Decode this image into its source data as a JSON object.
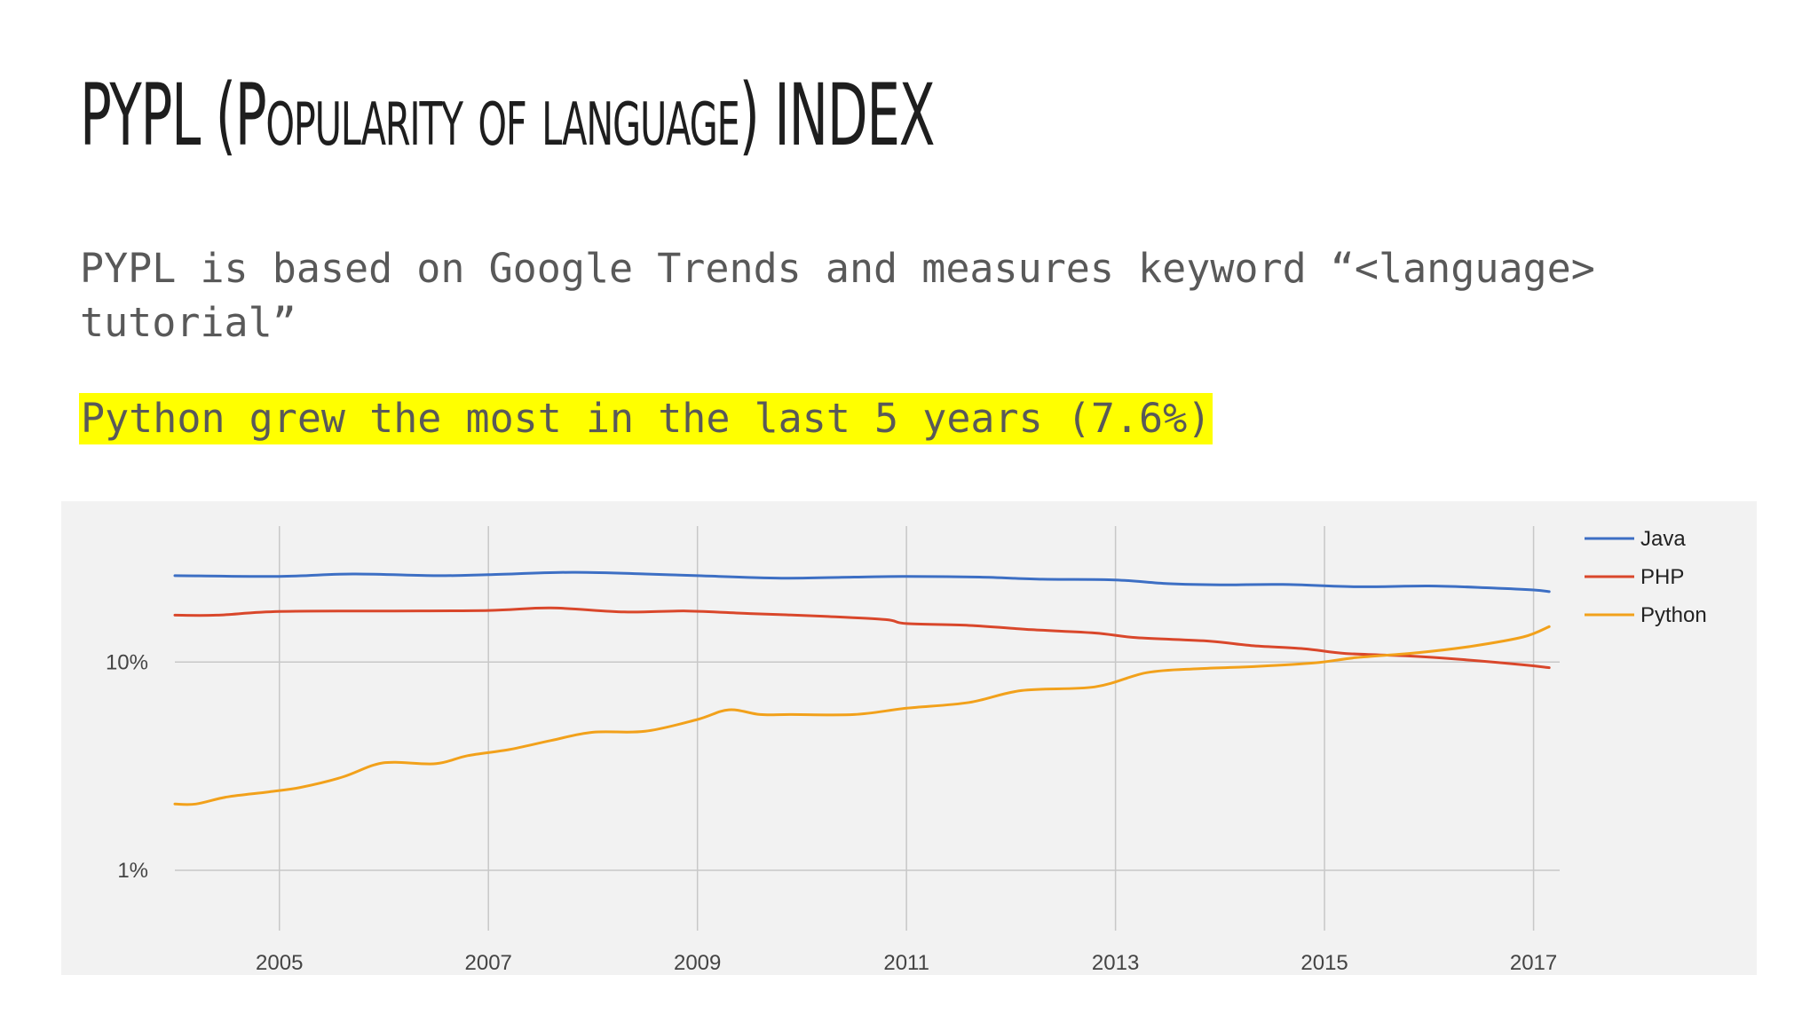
{
  "slide": {
    "title": "PYPL (Popularity of language) INDEX",
    "subtitle": "PYPL is based on Google Trends and measures keyword “<language> tutorial”",
    "highlight": "Python grew the most in the last 5 years (7.6%)",
    "highlight_color": "#ffff00"
  },
  "chart_data": {
    "type": "line",
    "title": "",
    "xlabel": "",
    "ylabel": "",
    "y_scale": "log",
    "ylim": [
      0.6,
      45
    ],
    "xlim": [
      2004.0,
      2017.25
    ],
    "x_ticks": [
      2005,
      2007,
      2009,
      2011,
      2013,
      2015,
      2017
    ],
    "y_ticks": [
      {
        "value": 10,
        "label": "10%"
      },
      {
        "value": 1,
        "label": "1%"
      }
    ],
    "grid": true,
    "legend_position": "top-right",
    "series": [
      {
        "name": "Java",
        "color": "#3d6fc4",
        "points": [
          [
            2004.0,
            26.0
          ],
          [
            2005.0,
            25.8
          ],
          [
            2005.7,
            26.5
          ],
          [
            2006.5,
            26.0
          ],
          [
            2007.0,
            26.3
          ],
          [
            2007.8,
            27.0
          ],
          [
            2008.5,
            26.5
          ],
          [
            2009.0,
            26.0
          ],
          [
            2009.8,
            25.3
          ],
          [
            2010.5,
            25.6
          ],
          [
            2011.0,
            25.8
          ],
          [
            2011.7,
            25.6
          ],
          [
            2012.3,
            25.0
          ],
          [
            2013.0,
            24.8
          ],
          [
            2013.5,
            23.8
          ],
          [
            2014.0,
            23.5
          ],
          [
            2014.6,
            23.6
          ],
          [
            2015.3,
            23.0
          ],
          [
            2016.0,
            23.2
          ],
          [
            2016.6,
            22.7
          ],
          [
            2017.0,
            22.2
          ],
          [
            2017.15,
            21.8
          ]
        ]
      },
      {
        "name": "PHP",
        "color": "#d9472b",
        "points": [
          [
            2004.0,
            16.8
          ],
          [
            2004.4,
            16.8
          ],
          [
            2005.0,
            17.5
          ],
          [
            2006.0,
            17.6
          ],
          [
            2007.0,
            17.7
          ],
          [
            2007.6,
            18.2
          ],
          [
            2008.3,
            17.4
          ],
          [
            2008.9,
            17.6
          ],
          [
            2009.5,
            17.1
          ],
          [
            2010.2,
            16.6
          ],
          [
            2010.8,
            16.0
          ],
          [
            2011.0,
            15.3
          ],
          [
            2011.6,
            15.0
          ],
          [
            2012.2,
            14.3
          ],
          [
            2012.8,
            13.8
          ],
          [
            2013.2,
            13.1
          ],
          [
            2013.9,
            12.6
          ],
          [
            2014.3,
            12.0
          ],
          [
            2014.8,
            11.6
          ],
          [
            2015.2,
            11.0
          ],
          [
            2015.8,
            10.7
          ],
          [
            2016.3,
            10.3
          ],
          [
            2016.9,
            9.7
          ],
          [
            2017.15,
            9.4
          ]
        ]
      },
      {
        "name": "Python",
        "color": "#f2a11b",
        "points": [
          [
            2004.0,
            2.08
          ],
          [
            2004.2,
            2.08
          ],
          [
            2004.5,
            2.25
          ],
          [
            2004.9,
            2.38
          ],
          [
            2005.2,
            2.5
          ],
          [
            2005.6,
            2.8
          ],
          [
            2005.9,
            3.2
          ],
          [
            2006.1,
            3.3
          ],
          [
            2006.5,
            3.25
          ],
          [
            2006.8,
            3.55
          ],
          [
            2007.2,
            3.8
          ],
          [
            2007.6,
            4.2
          ],
          [
            2008.0,
            4.6
          ],
          [
            2008.5,
            4.65
          ],
          [
            2009.0,
            5.3
          ],
          [
            2009.3,
            5.9
          ],
          [
            2009.6,
            5.6
          ],
          [
            2009.9,
            5.6
          ],
          [
            2010.5,
            5.6
          ],
          [
            2011.0,
            6.0
          ],
          [
            2011.6,
            6.4
          ],
          [
            2012.1,
            7.3
          ],
          [
            2012.8,
            7.6
          ],
          [
            2013.3,
            8.9
          ],
          [
            2013.8,
            9.3
          ],
          [
            2014.3,
            9.5
          ],
          [
            2014.9,
            9.9
          ],
          [
            2015.3,
            10.5
          ],
          [
            2015.9,
            11.1
          ],
          [
            2016.4,
            11.9
          ],
          [
            2016.9,
            13.2
          ],
          [
            2017.15,
            14.8
          ]
        ]
      }
    ]
  }
}
